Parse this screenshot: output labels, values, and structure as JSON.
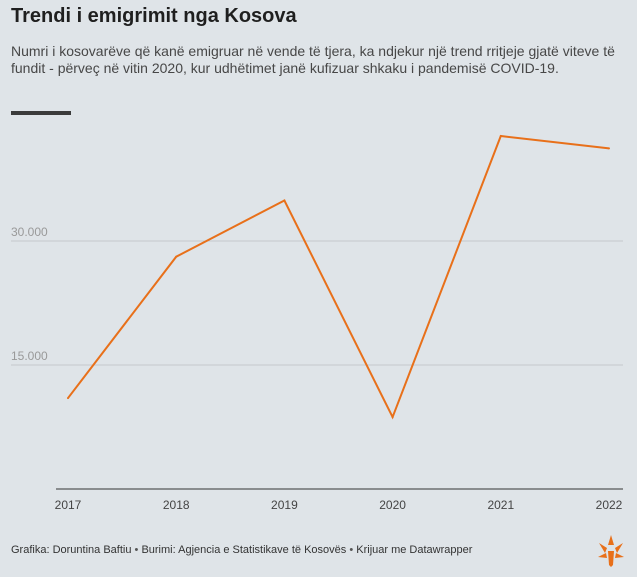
{
  "title": "Trendi i emigrimit nga Kosova",
  "subtitle": "Numri i kosovarëve që kanë emigruar në vende të tjera, ka ndjekur një trend rritjeje gjatë viteve të fundit - përveç në vitin 2020, kur udhëtimet janë kufizuar shkaku i pandemisë COVID-19.",
  "footer": {
    "credit": "Grafika: Doruntina Baftiu",
    "source": "Burimi: Agjencia e Statistikave të Kosovës",
    "tool": "Krijuar me Datawrapper",
    "separator": "•"
  },
  "colors": {
    "line": "#e8701a",
    "grid": "#c4c9cd",
    "axis": "#333333",
    "tick_text": "#999999"
  },
  "logo_icon": "rfe-rl-logo-icon",
  "chart_data": {
    "type": "line",
    "x": [
      "2017",
      "2018",
      "2019",
      "2020",
      "2021",
      "2022"
    ],
    "series": [
      {
        "values": [
          11000,
          28100,
          34900,
          8700,
          42700,
          41200
        ]
      }
    ],
    "yticks": [
      {
        "value": 15000,
        "label": "15.000"
      },
      {
        "value": 30000,
        "label": "30.000"
      }
    ],
    "ylim": [
      0,
      45000
    ],
    "xlabel": "",
    "ylabel": "",
    "grid": true
  }
}
